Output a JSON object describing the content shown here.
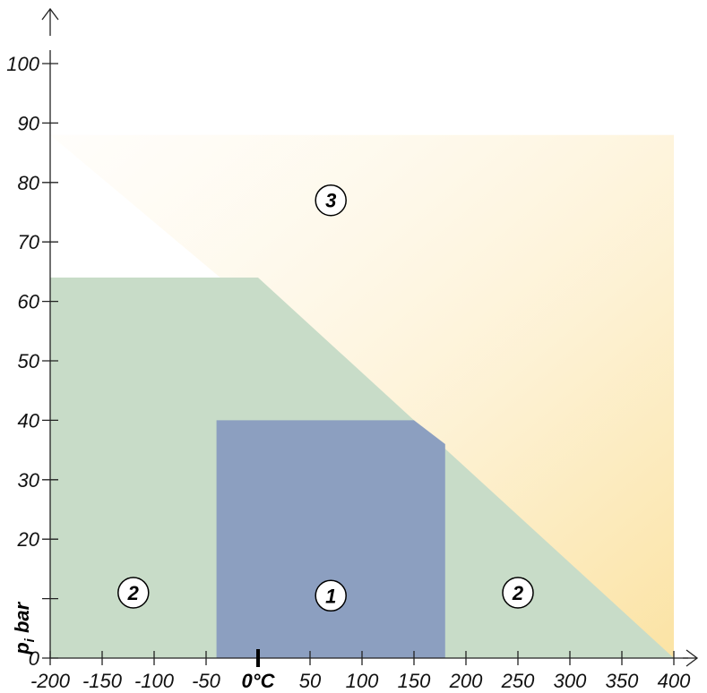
{
  "chart_data": {
    "type": "area",
    "x_axis": {
      "range": [
        -200,
        400
      ],
      "ticks": [
        -200,
        -150,
        -100,
        -50,
        0,
        50,
        100,
        150,
        200,
        250,
        300,
        350,
        400
      ],
      "tick_labels": [
        "-200",
        "-150",
        "-100",
        "-50",
        "",
        "50",
        "100",
        "150",
        "200",
        "250",
        "300",
        "350",
        "400"
      ],
      "zero_label": "0°C"
    },
    "y_axis": {
      "range": [
        0,
        100
      ],
      "ticks": [
        0,
        10,
        20,
        30,
        40,
        50,
        60,
        70,
        80,
        90,
        100
      ],
      "tick_labels": [
        "0",
        "",
        "20",
        "30",
        "40",
        "50",
        "60",
        "70",
        "80",
        "90",
        "100"
      ],
      "label_main": "p",
      "label_sub": "i",
      "label_unit": " bar"
    },
    "grid": false,
    "zones": [
      {
        "label": "3",
        "fill": "#fdf0c8",
        "gradient": true,
        "polygon": [
          [
            -200,
            88
          ],
          [
            400,
            88
          ],
          [
            400,
            0
          ],
          [
            400,
            0
          ]
        ],
        "label_pos": [
          70,
          77
        ]
      },
      {
        "label": "2",
        "fill": "#c8dcc8",
        "polygon": [
          [
            -200,
            0
          ],
          [
            -200,
            64
          ],
          [
            0,
            64
          ],
          [
            400,
            0
          ]
        ],
        "label_positions": [
          [
            -120,
            11
          ],
          [
            250,
            11
          ]
        ]
      },
      {
        "label": "1",
        "fill": "#8c9fc0",
        "polygon": [
          [
            -40,
            0
          ],
          [
            -40,
            40
          ],
          [
            150,
            40
          ],
          [
            180,
            36
          ],
          [
            180,
            0
          ]
        ],
        "label_pos": [
          70,
          10.5
        ]
      }
    ]
  }
}
